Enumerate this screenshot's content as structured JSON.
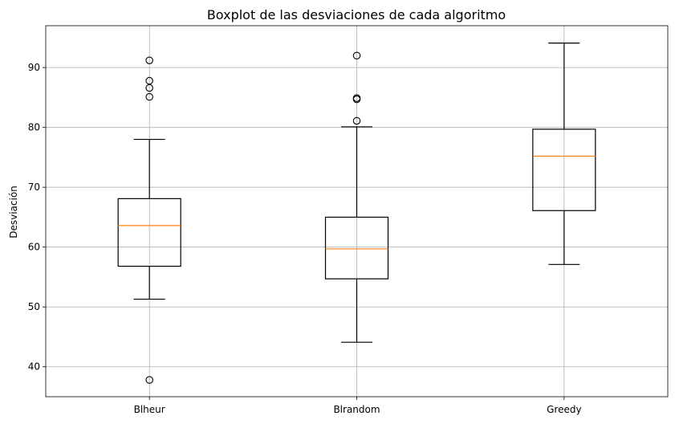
{
  "chart_data": {
    "type": "boxplot",
    "title": "Boxplot de las desviaciones de cada algoritmo",
    "xlabel": "",
    "ylabel": "Desviación",
    "ylim": [
      35,
      97
    ],
    "yticks": [
      40,
      50,
      60,
      70,
      80,
      90
    ],
    "grid": true,
    "categories": [
      "Blheur",
      "Blrandom",
      "Greedy"
    ],
    "series": [
      {
        "category": "Blheur",
        "whisker_low": 51.3,
        "q1": 56.8,
        "median": 63.6,
        "q3": 68.1,
        "whisker_high": 78.0,
        "outliers": [
          37.8,
          85.1,
          86.6,
          87.8,
          91.2
        ]
      },
      {
        "category": "Blrandom",
        "whisker_low": 44.1,
        "q1": 54.7,
        "median": 59.7,
        "q3": 65.0,
        "whisker_high": 80.1,
        "outliers": [
          81.1,
          84.7,
          84.9,
          92.0
        ]
      },
      {
        "category": "Greedy",
        "whisker_low": 57.1,
        "q1": 66.1,
        "median": 75.2,
        "q3": 79.7,
        "whisker_high": 94.1,
        "outliers": []
      }
    ],
    "colors": {
      "box": "#000000",
      "median": "#ff7f0e",
      "grid": "#b0b0b0"
    }
  }
}
